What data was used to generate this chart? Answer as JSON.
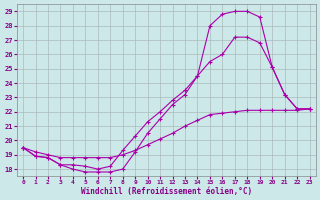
{
  "xlabel": "Windchill (Refroidissement éolien,°C)",
  "xlim": [
    -0.5,
    23.5
  ],
  "ylim": [
    17.5,
    29.5
  ],
  "yticks": [
    18,
    19,
    20,
    21,
    22,
    23,
    24,
    25,
    26,
    27,
    28,
    29
  ],
  "xticks": [
    0,
    1,
    2,
    3,
    4,
    5,
    6,
    7,
    8,
    9,
    10,
    11,
    12,
    13,
    14,
    15,
    16,
    17,
    18,
    19,
    20,
    21,
    22,
    23
  ],
  "line_color": "#aa00aa",
  "bg_color": "#cce8e8",
  "grid_color": "#aabbbb",
  "curve1_x": [
    0,
    1,
    2,
    3,
    4,
    5,
    6,
    7,
    8,
    9,
    10,
    11,
    12,
    13,
    14,
    15,
    16,
    17,
    18,
    19,
    20,
    21,
    22,
    23
  ],
  "curve1_y": [
    19.5,
    18.9,
    18.8,
    18.3,
    18.0,
    17.8,
    17.8,
    17.8,
    18.0,
    19.2,
    20.5,
    21.5,
    22.5,
    23.2,
    24.5,
    28.0,
    28.8,
    29.0,
    29.0,
    28.6,
    25.1,
    23.2,
    22.2,
    22.2
  ],
  "curve2_x": [
    0,
    1,
    2,
    3,
    4,
    5,
    6,
    7,
    8,
    9,
    10,
    11,
    12,
    13,
    14,
    15,
    16,
    17,
    18,
    19,
    20,
    21,
    22,
    23
  ],
  "curve2_y": [
    19.5,
    18.9,
    18.8,
    18.3,
    18.3,
    18.2,
    18.0,
    18.2,
    19.3,
    20.3,
    21.3,
    22.0,
    22.8,
    23.5,
    24.5,
    25.5,
    26.0,
    27.2,
    27.2,
    26.8,
    25.1,
    23.2,
    22.2,
    22.2
  ],
  "curve3_x": [
    0,
    1,
    2,
    3,
    4,
    5,
    6,
    7,
    8,
    9,
    10,
    11,
    12,
    13,
    14,
    15,
    16,
    17,
    18,
    19,
    20,
    21,
    22,
    23
  ],
  "curve3_y": [
    19.5,
    19.2,
    19.0,
    18.8,
    18.8,
    18.8,
    18.8,
    18.8,
    19.0,
    19.3,
    19.7,
    20.1,
    20.5,
    21.0,
    21.4,
    21.8,
    21.9,
    22.0,
    22.1,
    22.1,
    22.1,
    22.1,
    22.1,
    22.2
  ]
}
